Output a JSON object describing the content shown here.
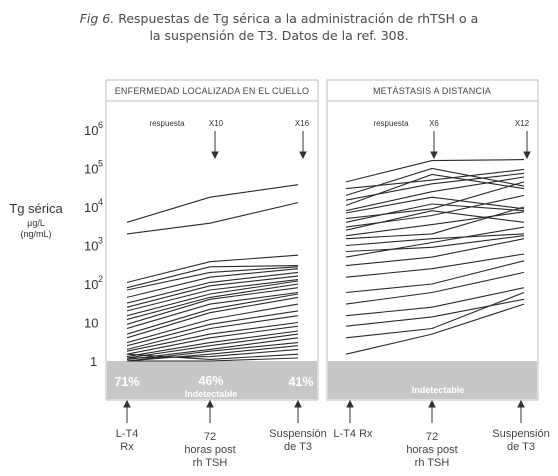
{
  "caption": {
    "label": "Fig 6.",
    "line1": "Respuestas de Tg sérica a la administración de rhTSH o a",
    "line2": "la suspensión de T3. Datos de la ref. 308."
  },
  "chart_data": {
    "type": "line",
    "y_scale": "log",
    "ylim": [
      0.1,
      1000000
    ],
    "ylabel": "Tg sérica",
    "yunit_1": "µg/L",
    "yunit_2": "(ng/mL)",
    "y_ticks": [
      {
        "base": "10",
        "exp": "6",
        "value": 1000000
      },
      {
        "base": "10",
        "exp": "5",
        "value": 100000
      },
      {
        "base": "10",
        "exp": "4",
        "value": 10000
      },
      {
        "base": "10",
        "exp": "3",
        "value": 1000
      },
      {
        "base": "10",
        "exp": "2",
        "value": 100
      },
      {
        "base": "10",
        "exp": "",
        "value": 10
      },
      {
        "base": "1",
        "exp": "",
        "value": 1
      }
    ],
    "undetectable_level": 1,
    "x_categories": [
      {
        "line1": "L-T4",
        "line2": "Rx",
        "line3": ""
      },
      {
        "line1": "72",
        "line2": "horas post",
        "line3": "rh TSH"
      },
      {
        "line1": "Suspensión",
        "line2": "de T3",
        "line3": ""
      }
    ],
    "panels": [
      {
        "title": "ENFERMEDAD LOCALIZADA EN EL CUELLO",
        "annotations": [
          "respuesta",
          "X10",
          "X16"
        ],
        "undetectable_pct": [
          "71%",
          "46%",
          "41%"
        ],
        "undetectable_label": "Indetectable",
        "series": [
          [
            4000,
            18000,
            38000
          ],
          [
            2000,
            3800,
            13000
          ],
          [
            110,
            380,
            560
          ],
          [
            80,
            280,
            300
          ],
          [
            70,
            200,
            280
          ],
          [
            45,
            150,
            250
          ],
          [
            32,
            110,
            200
          ],
          [
            25,
            90,
            160
          ],
          [
            20,
            70,
            130
          ],
          [
            15,
            55,
            120
          ],
          [
            12,
            45,
            100
          ],
          [
            9,
            40,
            80
          ],
          [
            7,
            30,
            60
          ],
          [
            5,
            22,
            55
          ],
          [
            4,
            18,
            45
          ],
          [
            3,
            12,
            30
          ],
          [
            2.5,
            9,
            20
          ],
          [
            2,
            7,
            15
          ],
          [
            1.8,
            5,
            10
          ],
          [
            1.5,
            4,
            8
          ],
          [
            1.3,
            3,
            6
          ],
          [
            1.2,
            2.5,
            5
          ],
          [
            1.1,
            2,
            4
          ],
          [
            1,
            1.8,
            3
          ],
          [
            1,
            1.5,
            2.5
          ],
          [
            1.2,
            1.3,
            2
          ],
          [
            1.5,
            1.1,
            1.5
          ],
          [
            1,
            1,
            1.2
          ]
        ]
      },
      {
        "title": "METÁSTASIS A DISTANCIA",
        "annotations": [
          "respuesta",
          "X6",
          "X12"
        ],
        "undetectable_pct": [
          "",
          "",
          ""
        ],
        "undetectable_label": "Indetectable",
        "series": [
          [
            45000,
            160000,
            170000
          ],
          [
            30000,
            50000,
            95000
          ],
          [
            20000,
            100000,
            35000
          ],
          [
            15000,
            40000,
            75000
          ],
          [
            11000,
            70000,
            30000
          ],
          [
            8000,
            25000,
            60000
          ],
          [
            7000,
            18000,
            9000
          ],
          [
            5000,
            9000,
            45000
          ],
          [
            4000,
            12000,
            8000
          ],
          [
            3000,
            6000,
            20000
          ],
          [
            2500,
            8000,
            4000
          ],
          [
            1800,
            3500,
            7500
          ],
          [
            1500,
            2000,
            10000
          ],
          [
            1000,
            1500,
            2000
          ],
          [
            700,
            900,
            1800
          ],
          [
            500,
            1200,
            3000
          ],
          [
            300,
            500,
            1500
          ],
          [
            150,
            250,
            600
          ],
          [
            60,
            100,
            400
          ],
          [
            30,
            60,
            200
          ],
          [
            15,
            25,
            80
          ],
          [
            8,
            14,
            40
          ],
          [
            4,
            7,
            60
          ],
          [
            1.5,
            5,
            30
          ]
        ]
      }
    ]
  }
}
